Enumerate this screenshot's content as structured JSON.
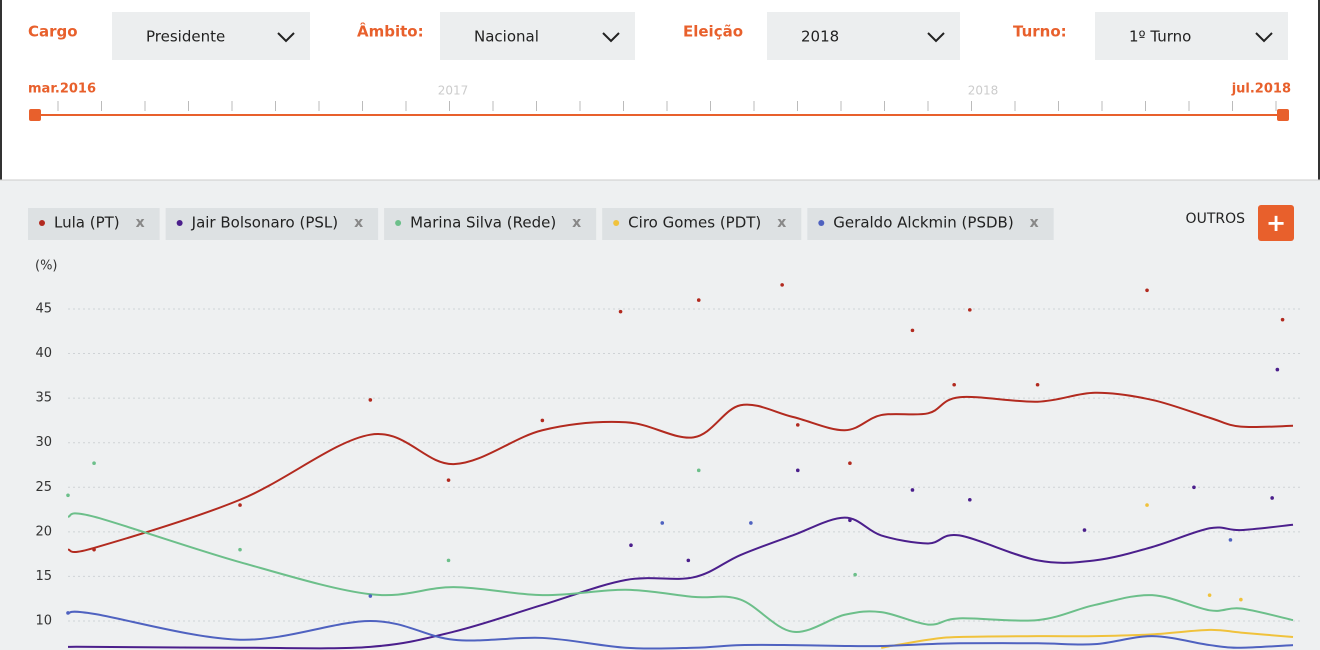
{
  "filters": [
    {
      "label": "Cargo",
      "value": "Presidente"
    },
    {
      "label": "Âmbito:",
      "value": "Nacional"
    },
    {
      "label": "Eleição",
      "value": "2018"
    },
    {
      "label": "Turno:",
      "value": "1º Turno"
    }
  ],
  "timeline": {
    "start": "mar.2016",
    "end": "jul.2018",
    "years": [
      "2017",
      "2018"
    ]
  },
  "controls": {
    "others": "OUTROS",
    "add": "+",
    "remove": "x"
  },
  "chart_data": {
    "type": "line",
    "y_unit": "(%)",
    "x": [
      2016.2,
      2016.25,
      2016.53,
      2016.78,
      2016.94,
      2017.11,
      2017.27,
      2017.4,
      2017.49,
      2017.59,
      2017.69,
      2017.76,
      2017.85,
      2017.91,
      2018.06,
      2018.17,
      2018.28,
      2018.39,
      2018.45,
      2018.55
    ],
    "xlim": [
      2016.2,
      2018.55
    ],
    "ylim": [
      7,
      48
    ],
    "yticks": [
      10,
      15,
      20,
      25,
      30,
      35,
      40,
      45
    ],
    "grid": true,
    "series": [
      {
        "name": "Lula (PT)",
        "color": "#b22a1f",
        "values": [
          18.0,
          18.2,
          23.6,
          30.9,
          27.6,
          31.4,
          32.3,
          30.6,
          34.2,
          32.9,
          31.4,
          33.1,
          33.3,
          35.1,
          34.6,
          35.6,
          34.8,
          32.8,
          31.8,
          31.9
        ],
        "polls": {
          "x": [
            2016.25,
            2016.53,
            2016.78,
            2016.93,
            2017.11,
            2017.26,
            2017.41,
            2017.57,
            2017.6,
            2017.7,
            2017.82,
            2017.9,
            2017.93,
            2018.06,
            2018.27,
            2018.53
          ],
          "values": [
            18.0,
            23.0,
            34.8,
            25.8,
            32.5,
            44.7,
            46.0,
            47.7,
            32.0,
            27.7,
            42.6,
            36.5,
            44.9,
            36.5,
            47.1,
            43.8
          ]
        }
      },
      {
        "name": "Jair Bolsonaro (PSL)",
        "color": "#4b1f8c",
        "values": [
          7.1,
          7.1,
          7.0,
          7.1,
          8.8,
          11.8,
          14.6,
          14.9,
          17.4,
          19.6,
          21.6,
          19.6,
          18.7,
          19.6,
          16.8,
          16.8,
          18.3,
          20.4,
          20.2,
          20.8
        ],
        "polls": {
          "x": [
            2017.28,
            2017.39,
            2017.6,
            2017.7,
            2017.82,
            2017.93,
            2018.15,
            2018.36,
            2018.52,
            2018.51
          ],
          "values": [
            18.5,
            16.8,
            26.9,
            21.3,
            24.7,
            23.6,
            20.2,
            25.0,
            38.2,
            23.8
          ]
        }
      },
      {
        "name": "Marina Silva (Rede)",
        "color": "#6cbf8a",
        "values": [
          21.7,
          21.7,
          16.6,
          13.0,
          13.8,
          12.9,
          13.5,
          12.7,
          12.4,
          8.8,
          10.7,
          11.0,
          9.6,
          10.3,
          10.1,
          11.8,
          12.9,
          11.2,
          11.4,
          10.1
        ],
        "polls": {
          "x": [
            2016.2,
            2016.25,
            2016.53,
            2016.93,
            2017.41,
            2017.71
          ],
          "values": [
            24.1,
            27.7,
            18.0,
            16.8,
            26.9,
            15.2
          ]
        }
      },
      {
        "name": "Ciro Gomes (PDT)",
        "color": "#f0c23c",
        "values": [
          null,
          null,
          null,
          null,
          null,
          null,
          null,
          null,
          null,
          null,
          null,
          7.0,
          7.9,
          8.2,
          8.3,
          8.3,
          8.5,
          9.0,
          8.7,
          8.2
        ],
        "polls": {
          "x": [
            2018.27,
            2018.39,
            2018.45
          ],
          "values": [
            23.0,
            12.9,
            12.4
          ]
        }
      },
      {
        "name": "Geraldo Alckmin (PSDB)",
        "color": "#4f62c0",
        "values": [
          10.9,
          10.8,
          7.9,
          10.0,
          7.9,
          8.1,
          7.0,
          7.0,
          7.3,
          7.3,
          7.2,
          7.2,
          7.4,
          7.5,
          7.5,
          7.4,
          8.3,
          7.3,
          7.0,
          7.3
        ],
        "polls": {
          "x": [
            2016.2,
            2016.78,
            2017.34,
            2017.51,
            2018.43
          ],
          "values": [
            10.9,
            12.8,
            21.0,
            21.0,
            19.1
          ]
        }
      }
    ]
  }
}
